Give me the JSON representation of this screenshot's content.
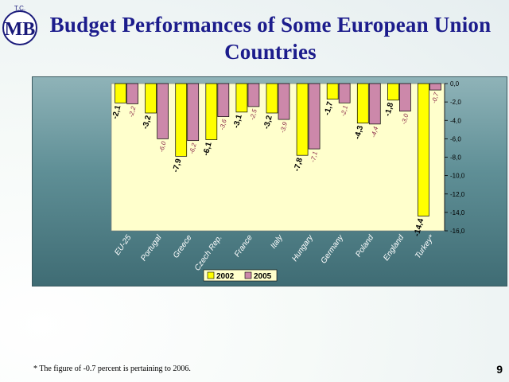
{
  "slide": {
    "title_line1": "Budget Performances of Some European Union",
    "title_line2": "Countries",
    "footnote": "* The figure of -0.7 percent is pertaining to 2006.",
    "page_number": "9",
    "logo_letters": "MB",
    "logo_top_text": "T.C."
  },
  "chart_data": {
    "type": "bar",
    "categories": [
      "EU-25",
      "Portugal",
      "Greece",
      "Czech Rep.",
      "France",
      "Italy",
      "Hungary",
      "Germany",
      "Poland",
      "England",
      "Turkey*"
    ],
    "series": [
      {
        "name": "2002",
        "color": "#ffff00",
        "values": [
          -2.1,
          -3.2,
          -7.9,
          -6.1,
          -3.1,
          -3.2,
          -7.8,
          -1.7,
          -4.3,
          -1.8,
          -14.4
        ],
        "labels": [
          "-2,1",
          "-3,2",
          "-7,9",
          "-6,1",
          "-3,1",
          "-3,2",
          "-7,8",
          "-1,7",
          "-4,3",
          "-1,8",
          "-14,4"
        ]
      },
      {
        "name": "2005",
        "color": "#cc88aa",
        "values": [
          -2.2,
          -6.0,
          -6.2,
          -3.6,
          -2.5,
          -3.9,
          -7.1,
          -2.1,
          -4.4,
          -3.0,
          -0.7
        ],
        "labels": [
          "-2,2",
          "-6,0",
          "-6,2",
          "-3,6",
          "-2,5",
          "-3,9",
          "-7,1",
          "-2,1",
          "-4,4",
          "-3,0",
          "-0,7"
        ]
      }
    ],
    "ylim": [
      -16,
      0
    ],
    "y_ticks": [
      "0,0",
      "-2,0",
      "-4,0",
      "-6,0",
      "-8,0",
      "-10,0",
      "-12,0",
      "-14,0",
      "-16,0"
    ],
    "legend_position": "bottom-center",
    "grid": false
  }
}
